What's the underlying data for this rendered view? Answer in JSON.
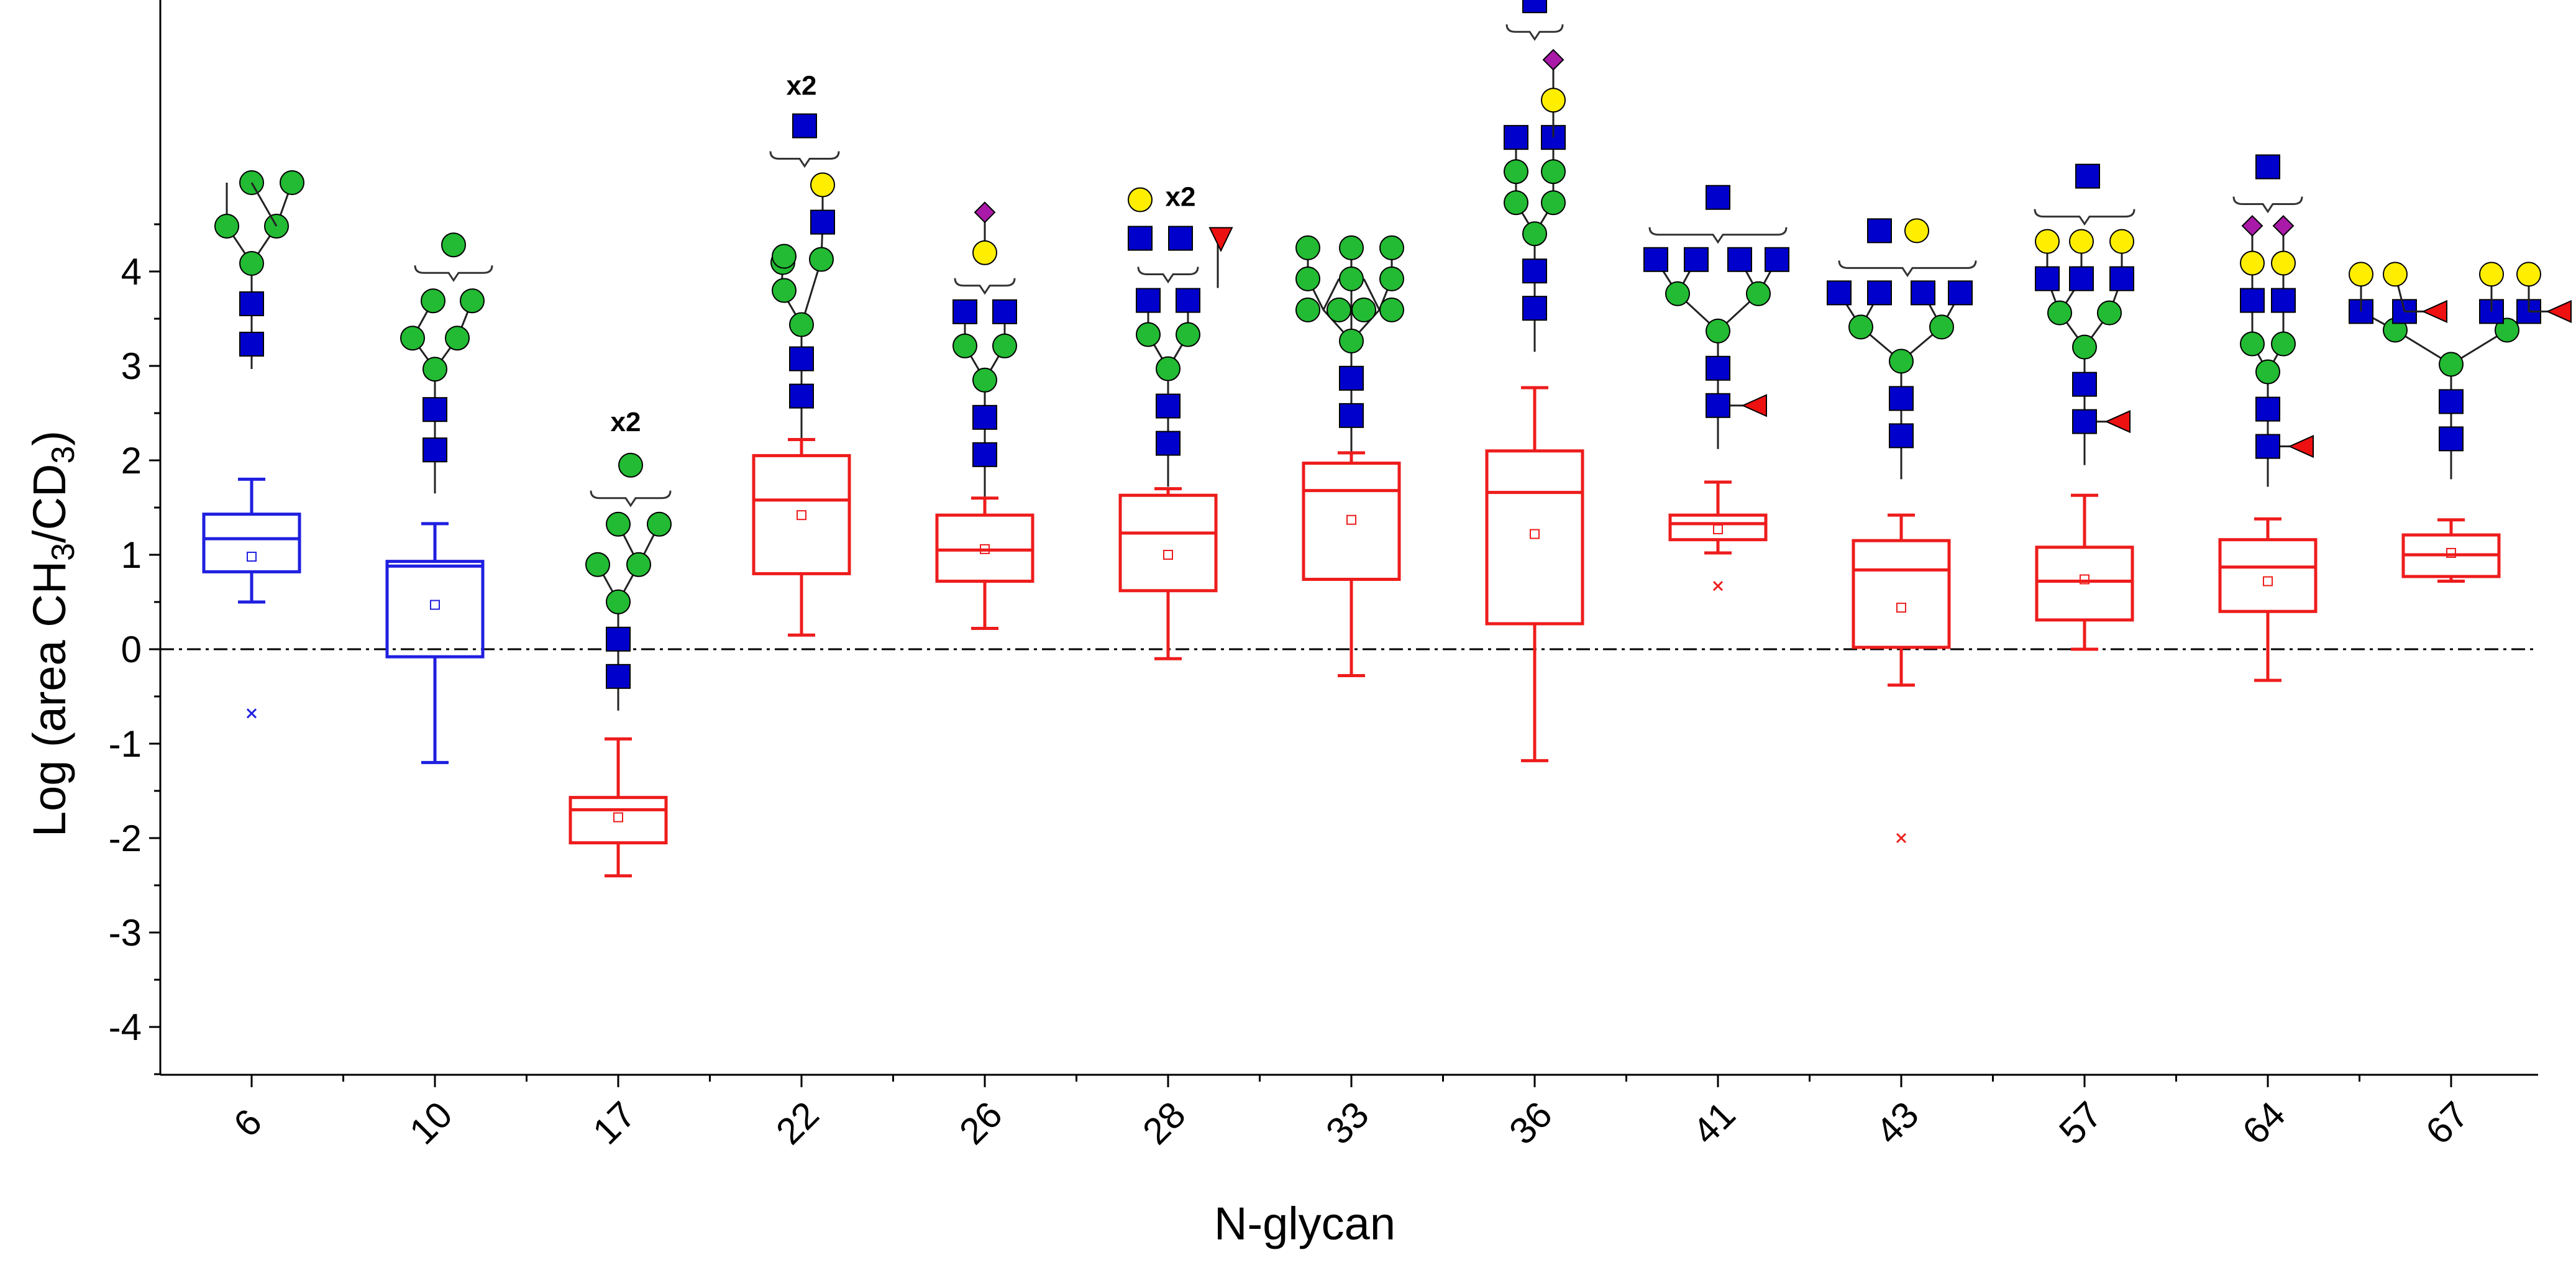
{
  "chart_data": {
    "type": "box",
    "title": "",
    "xlabel": "N-glycan",
    "ylabel": {
      "prefix": "Log (area CH",
      "sub1": "3",
      "mid": "/CD",
      "sub2": "3",
      "suffix": ")"
    },
    "ylim": [
      -4.5,
      4.5
    ],
    "yticks": [
      -4,
      -3,
      -2,
      -1,
      0,
      1,
      2,
      3,
      4
    ],
    "reference_line": 0,
    "grid": false,
    "colors": {
      "blue": "#1f1fe0",
      "red": "#ee1c1c",
      "gal": "#ffee00",
      "glc": "#22bb33",
      "glcnac": "#0000cc",
      "sia": "#aa1aa8",
      "fuc": "#ee1111"
    },
    "categories": [
      "6",
      "10",
      "17",
      "22",
      "26",
      "28",
      "33",
      "36",
      "41",
      "43",
      "57",
      "64",
      "67"
    ],
    "boxes": [
      {
        "category": "6",
        "color": "blue",
        "whisker_low": 0.5,
        "q1": 0.82,
        "median": 1.17,
        "q3": 1.43,
        "whisker_high": 1.8,
        "mean": 0.98,
        "outliers": [
          -0.68
        ],
        "structure": "hm-a",
        "multiplier": ""
      },
      {
        "category": "10",
        "color": "blue",
        "whisker_low": -1.2,
        "q1": -0.08,
        "median": 0.88,
        "q3": 0.93,
        "whisker_high": 1.33,
        "mean": 0.47,
        "outliers": [],
        "structure": "hm-b",
        "multiplier": ""
      },
      {
        "category": "17",
        "color": "red",
        "whisker_low": -2.4,
        "q1": -2.05,
        "median": -1.7,
        "q3": -1.57,
        "whisker_high": -0.95,
        "mean": -1.78,
        "outliers": [],
        "structure": "hm-c",
        "multiplier": "x2"
      },
      {
        "category": "22",
        "color": "red",
        "whisker_low": 0.15,
        "q1": 0.8,
        "median": 1.58,
        "q3": 2.05,
        "whisker_high": 2.22,
        "mean": 1.42,
        "outliers": [],
        "structure": "hybrid-a",
        "multiplier": "x2"
      },
      {
        "category": "26",
        "color": "red",
        "whisker_low": 0.22,
        "q1": 0.72,
        "median": 1.05,
        "q3": 1.42,
        "whisker_high": 1.6,
        "mean": 1.06,
        "outliers": [],
        "structure": "hybrid-b",
        "multiplier": ""
      },
      {
        "category": "28",
        "color": "red",
        "whisker_low": -0.1,
        "q1": 0.62,
        "median": 1.23,
        "q3": 1.63,
        "whisker_high": 1.7,
        "mean": 1.0,
        "outliers": [],
        "structure": "complex-a",
        "multiplier": "x2"
      },
      {
        "category": "33",
        "color": "red",
        "whisker_low": -0.28,
        "q1": 0.74,
        "median": 1.68,
        "q3": 1.97,
        "whisker_high": 2.08,
        "mean": 1.37,
        "outliers": [],
        "structure": "hm-d",
        "multiplier": ""
      },
      {
        "category": "36",
        "color": "red",
        "whisker_low": -1.18,
        "q1": 0.27,
        "median": 1.66,
        "q3": 2.1,
        "whisker_high": 2.77,
        "mean": 1.22,
        "outliers": [],
        "structure": "hybrid-c",
        "multiplier": ""
      },
      {
        "category": "41",
        "color": "red",
        "whisker_low": 1.02,
        "q1": 1.16,
        "median": 1.33,
        "q3": 1.42,
        "whisker_high": 1.77,
        "mean": 1.27,
        "outliers": [
          0.67
        ],
        "structure": "complex-b",
        "multiplier": ""
      },
      {
        "category": "43",
        "color": "red",
        "whisker_low": -0.38,
        "q1": 0.02,
        "median": 0.84,
        "q3": 1.15,
        "whisker_high": 1.42,
        "mean": 0.44,
        "outliers": [
          -2.0
        ],
        "structure": "complex-c",
        "multiplier": ""
      },
      {
        "category": "57",
        "color": "red",
        "whisker_low": 0.0,
        "q1": 0.31,
        "median": 0.72,
        "q3": 1.08,
        "whisker_high": 1.63,
        "mean": 0.74,
        "outliers": [],
        "structure": "complex-d",
        "multiplier": ""
      },
      {
        "category": "64",
        "color": "red",
        "whisker_low": -0.33,
        "q1": 0.4,
        "median": 0.87,
        "q3": 1.16,
        "whisker_high": 1.38,
        "mean": 0.72,
        "outliers": [],
        "structure": "complex-e",
        "multiplier": ""
      },
      {
        "category": "67",
        "color": "red",
        "whisker_low": 0.72,
        "q1": 0.77,
        "median": 1.0,
        "q3": 1.21,
        "whisker_high": 1.37,
        "mean": 1.02,
        "outliers": [],
        "structure": "complex-f",
        "multiplier": ""
      }
    ]
  }
}
